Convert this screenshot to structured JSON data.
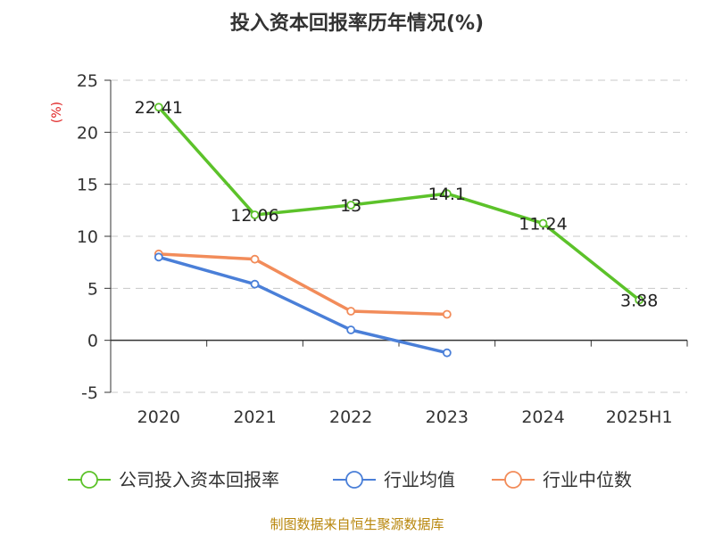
{
  "chart_data": {
    "type": "line",
    "title": "投入资本回报率历年情况(%)",
    "ylabel": "(%)",
    "xlabel": "",
    "categories": [
      "2020",
      "2021",
      "2022",
      "2023",
      "2024",
      "2025H1"
    ],
    "ylim": [
      -5,
      25
    ],
    "yticks": [
      -5,
      0,
      5,
      10,
      15,
      20,
      25
    ],
    "grid": true,
    "legend_position": "bottom",
    "series": [
      {
        "name": "公司投入资本回报率",
        "color": "#5cc22a",
        "values": [
          22.41,
          12.06,
          13,
          14.1,
          11.24,
          3.88
        ],
        "labels": [
          "22.41",
          "12.06",
          "13",
          "14.1",
          "11.24",
          "3.88"
        ]
      },
      {
        "name": "行业均值",
        "color": "#4a7fd8",
        "values": [
          8.0,
          5.4,
          1.0,
          -1.2,
          null,
          null
        ]
      },
      {
        "name": "行业中位数",
        "color": "#f28c5a",
        "values": [
          8.3,
          7.8,
          2.8,
          2.5,
          null,
          null
        ]
      }
    ]
  },
  "source": "制图数据来自恒生聚源数据库"
}
